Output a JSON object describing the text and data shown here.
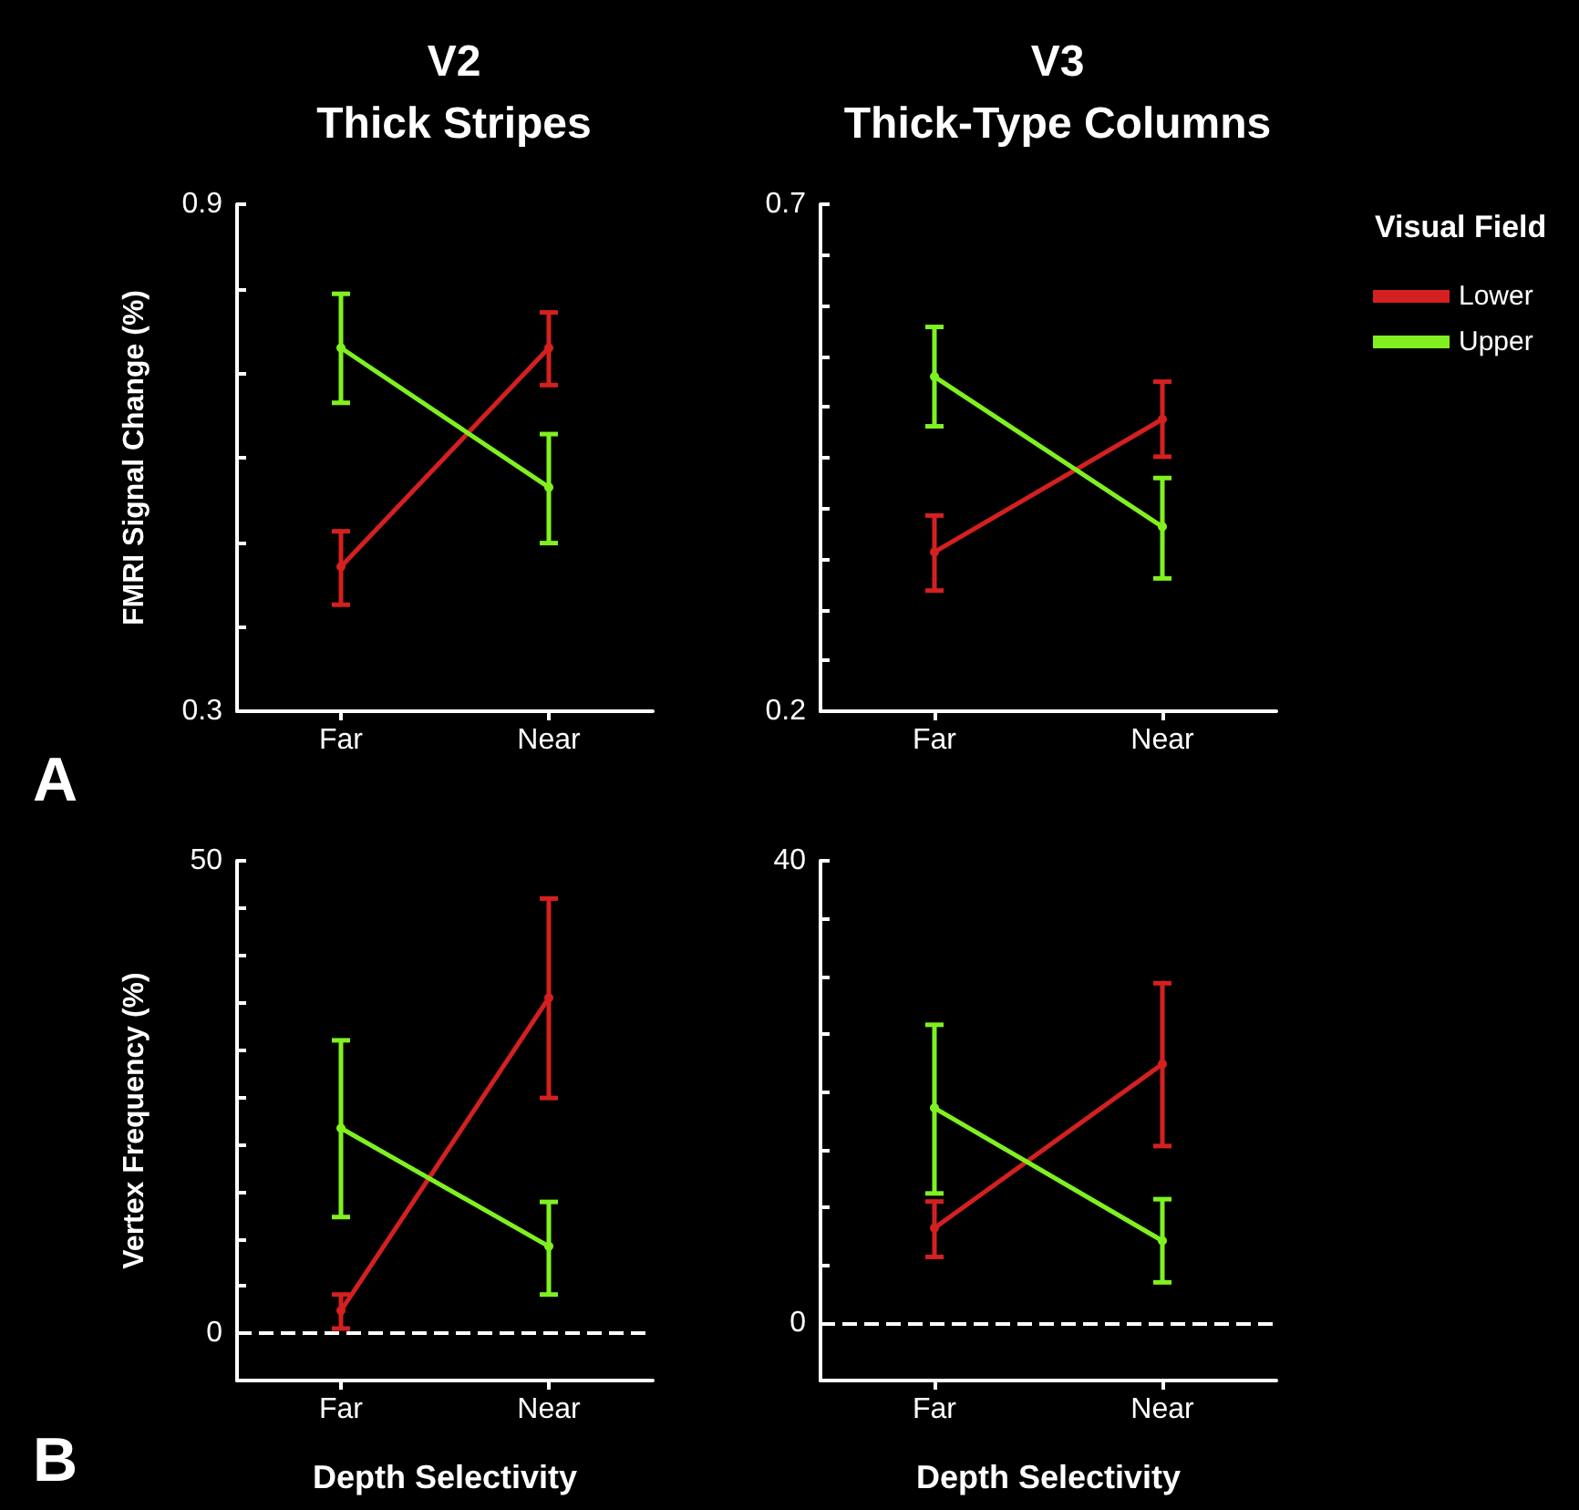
{
  "chart_data": [
    {
      "type": "line",
      "title": "V2\nThick Stripes",
      "ylabel": "FMRI Signal Change (%)",
      "categories": [
        "Far",
        "Near"
      ],
      "ylim": [
        0.3,
        0.9
      ],
      "yticks": [
        0.3,
        {
          "value": 0.4,
          "label": null
        },
        {
          "value": 0.5,
          "label": null
        },
        {
          "value": 0.6,
          "label": null
        },
        {
          "value": 0.7,
          "label": null
        },
        {
          "value": 0.8,
          "label": null
        },
        0.9
      ],
      "marker": "circle",
      "line_style": "solid",
      "annotations": [
        "A"
      ],
      "series": [
        {
          "color": "#d42020",
          "values": [
            0.471,
            0.73
          ],
          "errors": [
            [
              0.426,
              0.513
            ],
            [
              0.686,
              0.772
            ]
          ]
        },
        {
          "color": "#80f020",
          "values": [
            0.73,
            0.565
          ],
          "errors": [
            [
              0.665,
              0.794
            ],
            [
              0.499,
              0.628
            ]
          ]
        }
      ]
    },
    {
      "type": "line",
      "title": "V3\nThick-Type Columns",
      "legend_title": "Visual Field",
      "legend": "right",
      "categories": [
        "Far",
        "Near"
      ],
      "ylim": [
        0.2,
        0.7
      ],
      "yticks": [
        0.2,
        {
          "value": 0.25,
          "label": null
        },
        {
          "value": 0.3,
          "label": null
        },
        {
          "value": 0.35,
          "label": null
        },
        {
          "value": 0.4,
          "label": null
        },
        {
          "value": 0.45,
          "label": null
        },
        {
          "value": 0.5,
          "label": null
        },
        {
          "value": 0.55,
          "label": null
        },
        {
          "value": 0.6,
          "label": null
        },
        {
          "value": 0.65,
          "label": null
        },
        0.7
      ],
      "marker": "circle",
      "line_style": "solid",
      "series": [
        {
          "name": "Lower",
          "color": "#d42020",
          "values": [
            0.357,
            0.488
          ],
          "errors": [
            [
              0.319,
              0.393
            ],
            [
              0.451,
              0.525
            ]
          ]
        },
        {
          "name": "Upper",
          "color": "#80f020",
          "values": [
            0.53,
            0.382
          ],
          "errors": [
            [
              0.481,
              0.579
            ],
            [
              0.331,
              0.43
            ]
          ]
        }
      ]
    },
    {
      "type": "line",
      "xlabel": "Depth Selectivity",
      "ylabel": "Vertex Frequency (%)",
      "categories": [
        "Far",
        "Near"
      ],
      "ylim": [
        -5,
        50
      ],
      "yticks": [
        0,
        {
          "value": 5,
          "label": null
        },
        {
          "value": 10,
          "label": null
        },
        {
          "value": 15,
          "label": null
        },
        {
          "value": 20,
          "label": null
        },
        {
          "value": 25,
          "label": null
        },
        {
          "value": 30,
          "label": null
        },
        {
          "value": 35,
          "label": null
        },
        {
          "value": 40,
          "label": null
        },
        {
          "value": 45,
          "label": null
        },
        50
      ],
      "marker": "circle",
      "line_style": "solid",
      "annotations": [
        "B"
      ],
      "ref_lines": [
        {
          "axis": "y",
          "value": 0,
          "color": "#ffffff",
          "line_style": "dashed"
        }
      ],
      "series": [
        {
          "color": "#d42020",
          "values": [
            2.4,
            35.5
          ],
          "errors": [
            [
              0.5,
              4.1
            ],
            [
              24.9,
              46.0
            ]
          ]
        },
        {
          "color": "#80f020",
          "values": [
            21.7,
            9.2
          ],
          "errors": [
            [
              12.3,
              31.0
            ],
            [
              4.1,
              13.9
            ]
          ]
        }
      ]
    },
    {
      "type": "line",
      "xlabel": "Depth Selectivity",
      "categories": [
        "Far",
        "Near"
      ],
      "ylim": [
        -5,
        40
      ],
      "yticks": [
        0,
        {
          "value": 5,
          "label": null
        },
        {
          "value": 10,
          "label": null
        },
        {
          "value": 15,
          "label": null
        },
        {
          "value": 20,
          "label": null
        },
        {
          "value": 25,
          "label": null
        },
        {
          "value": 30,
          "label": null
        },
        {
          "value": 35,
          "label": null
        },
        40
      ],
      "marker": "circle",
      "line_style": "solid",
      "ref_lines": [
        {
          "axis": "y",
          "value": 0,
          "color": "#ffffff",
          "line_style": "dashed"
        }
      ],
      "series": [
        {
          "color": "#d42020",
          "values": [
            8.2,
            22.4
          ],
          "errors": [
            [
              5.7,
              10.5
            ],
            [
              15.3,
              29.4
            ]
          ]
        },
        {
          "color": "#80f020",
          "values": [
            18.6,
            7.1
          ],
          "errors": [
            [
              11.2,
              25.8
            ],
            [
              3.5,
              10.7
            ]
          ]
        }
      ]
    }
  ]
}
